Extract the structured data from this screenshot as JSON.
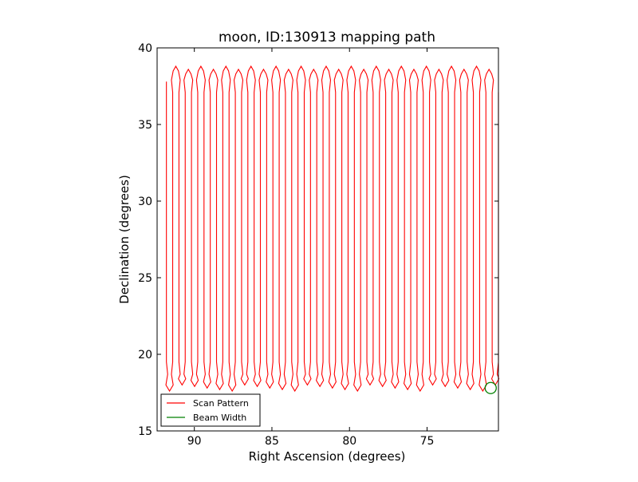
{
  "chart_data": {
    "type": "line",
    "title": "moon, ID:130913 mapping path",
    "xlabel": "Right Ascension (degrees)",
    "ylabel": "Declination (degrees)",
    "xlim": [
      92.4,
      70.4
    ],
    "ylim": [
      15,
      40
    ],
    "x_inverted": true,
    "grid": false,
    "legend_position": "lower-left",
    "xticks": [
      90,
      85,
      80,
      75
    ],
    "yticks": [
      15,
      20,
      25,
      30,
      35,
      40
    ],
    "series": [
      {
        "name": "Scan Pattern",
        "color": "#ff0000",
        "ra_start": 91.8,
        "ra_end": 70.4,
        "sweep_count": 53,
        "dec_min": 17.4,
        "dec_max": 38.9
      },
      {
        "name": "Beam Width",
        "color": "#008000",
        "marker": "circle",
        "center": [
          70.9,
          17.8
        ]
      }
    ]
  }
}
